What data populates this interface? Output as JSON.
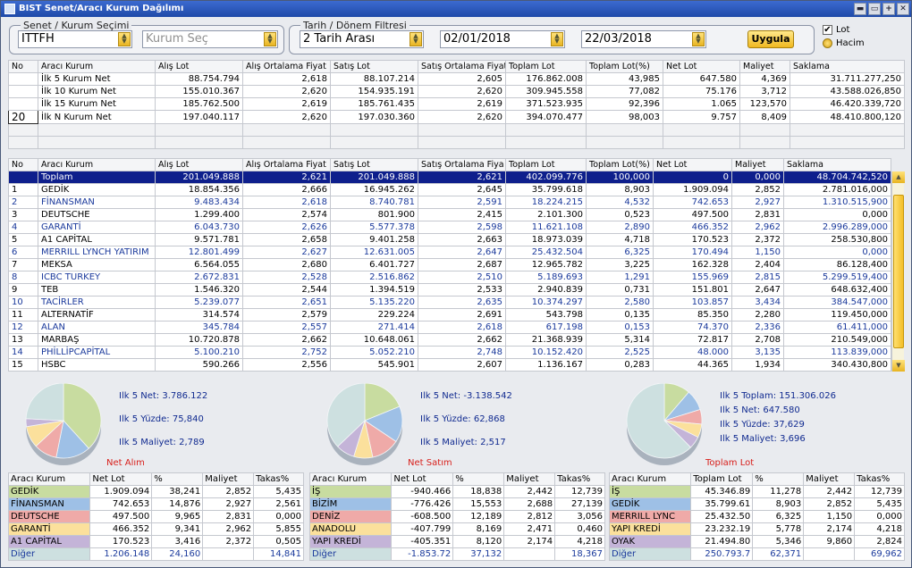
{
  "window": {
    "title": "BIST Senet/Aracı Kurum Dağılımı",
    "controls": [
      "▬",
      "▭",
      "+",
      "✕"
    ]
  },
  "filters": {
    "senet_group": "Senet / Kurum Seçimi",
    "symbol": "ITTFH",
    "kurum_placeholder": "Kurum Seç",
    "date_group": "Tarih / Dönem Filtresi",
    "period": "2 Tarih Arası",
    "start_date": "02/01/2018",
    "end_date": "22/03/2018",
    "apply_label": "Uygula",
    "opt_lot": "Lot",
    "opt_hacim": "Hacim",
    "lot_checked": "✔"
  },
  "top_table": {
    "headers": [
      "No",
      "Aracı Kurum",
      "Alış Lot",
      "Alış Ortalama Fiyat",
      "Satış Lot",
      "Satış Ortalama Fiyat",
      "Toplam Lot",
      "Toplam Lot(%)",
      "Net Lot",
      "Maliyet",
      "Saklama"
    ],
    "rows": [
      [
        "",
        "İlk 5 Kurum Net",
        "88.754.794",
        "2,618",
        "88.107.214",
        "2,605",
        "176.862.008",
        "43,985",
        "647.580",
        "4,369",
        "31.711.277,250"
      ],
      [
        "",
        "İlk 10 Kurum Net",
        "155.010.367",
        "2,620",
        "154.935.191",
        "2,620",
        "309.945.558",
        "77,082",
        "75.176",
        "3,712",
        "43.588.026,850"
      ],
      [
        "",
        "İlk 15 Kurum Net",
        "185.762.500",
        "2,619",
        "185.761.435",
        "2,619",
        "371.523.935",
        "92,396",
        "1.065",
        "123,570",
        "46.420.339,720"
      ],
      [
        "20",
        "İlk N Kurum Net",
        "197.040.117",
        "2,620",
        "197.030.360",
        "2,620",
        "394.070.477",
        "98,003",
        "9.757",
        "8,409",
        "48.410.800,120"
      ]
    ]
  },
  "main_table": {
    "headers": [
      "No",
      "Aracı Kurum",
      "Alış Lot",
      "Alış Ortalama Fiyat",
      "Satış Lot",
      "Satış Ortalama Fiya",
      "Toplam Lot",
      "Toplam Lot(%)",
      "Net Lot",
      "Maliyet",
      "Saklama"
    ],
    "rows": [
      [
        "",
        "Toplam",
        "201.049.888",
        "2,621",
        "201.049.888",
        "2,621",
        "402.099.776",
        "100,000",
        "0",
        "0,000",
        "48.704.742,520"
      ],
      [
        "1",
        "GEDİK",
        "18.854.356",
        "2,666",
        "16.945.262",
        "2,645",
        "35.799.618",
        "8,903",
        "1.909.094",
        "2,852",
        "2.781.016,000"
      ],
      [
        "2",
        "FİNANSMAN",
        "9.483.434",
        "2,618",
        "8.740.781",
        "2,591",
        "18.224.215",
        "4,532",
        "742.653",
        "2,927",
        "1.310.515,900"
      ],
      [
        "3",
        "DEUTSCHE",
        "1.299.400",
        "2,574",
        "801.900",
        "2,415",
        "2.101.300",
        "0,523",
        "497.500",
        "2,831",
        "0,000"
      ],
      [
        "4",
        "GARANTİ",
        "6.043.730",
        "2,626",
        "5.577.378",
        "2,598",
        "11.621.108",
        "2,890",
        "466.352",
        "2,962",
        "2.996.289,000"
      ],
      [
        "5",
        "A1 CAPİTAL",
        "9.571.781",
        "2,658",
        "9.401.258",
        "2,663",
        "18.973.039",
        "4,718",
        "170.523",
        "2,372",
        "258.530,800"
      ],
      [
        "6",
        "MERRILL LYNCH YATIRIM",
        "12.801.499",
        "2,627",
        "12.631.005",
        "2,647",
        "25.432.504",
        "6,325",
        "170.494",
        "1,150",
        "0,000"
      ],
      [
        "7",
        "MEKSA",
        "6.564.055",
        "2,680",
        "6.401.727",
        "2,687",
        "12.965.782",
        "3,225",
        "162.328",
        "2,404",
        "86.128,400"
      ],
      [
        "8",
        "ICBC TURKEY",
        "2.672.831",
        "2,528",
        "2.516.862",
        "2,510",
        "5.189.693",
        "1,291",
        "155.969",
        "2,815",
        "5.299.519,400"
      ],
      [
        "9",
        "TEB",
        "1.546.320",
        "2,544",
        "1.394.519",
        "2,533",
        "2.940.839",
        "0,731",
        "151.801",
        "2,647",
        "648.632,400"
      ],
      [
        "10",
        "TACİRLER",
        "5.239.077",
        "2,651",
        "5.135.220",
        "2,635",
        "10.374.297",
        "2,580",
        "103.857",
        "3,434",
        "384.547,000"
      ],
      [
        "11",
        "ALTERNATİF",
        "314.574",
        "2,579",
        "229.224",
        "2,691",
        "543.798",
        "0,135",
        "85.350",
        "2,280",
        "119.450,000"
      ],
      [
        "12",
        "ALAN",
        "345.784",
        "2,557",
        "271.414",
        "2,618",
        "617.198",
        "0,153",
        "74.370",
        "2,336",
        "61.411,000"
      ],
      [
        "13",
        "MARBAŞ",
        "10.720.878",
        "2,662",
        "10.648.061",
        "2,662",
        "21.368.939",
        "5,314",
        "72.817",
        "2,708",
        "210.549,000"
      ],
      [
        "14",
        "PHİLLİPCAPİTAL",
        "5.100.210",
        "2,752",
        "5.052.210",
        "2,748",
        "10.152.420",
        "2,525",
        "48.000",
        "3,135",
        "113.839,000"
      ],
      [
        "15",
        "HSBC",
        "590.266",
        "2,556",
        "545.901",
        "2,607",
        "1.136.167",
        "0,283",
        "44.365",
        "1,934",
        "340.430,800"
      ]
    ]
  },
  "charts": [
    {
      "title": "Net Alım",
      "stats": [
        "Ilk 5 Net: 3.786.122",
        "Ilk 5 Yüzde: 75,840",
        "Ilk 5 Maliyet: 2,789"
      ],
      "chart_data": {
        "type": "pie",
        "categories": [
          "GEDİK",
          "FİNANSMAN",
          "DEUTSCHE",
          "GARANTİ",
          "A1 CAPİTAL",
          "Diğer"
        ],
        "values": [
          38.241,
          14.876,
          9.965,
          9.341,
          3.416,
          24.16
        ],
        "colors": [
          "#c8dca0",
          "#9ec0e6",
          "#efaaa8",
          "#fbe09c",
          "#c4b4d8",
          "#cde0e0"
        ]
      },
      "table": {
        "headers": [
          "Aracı Kurum",
          "Net Lot",
          "%",
          "Maliyet",
          "Takas%"
        ],
        "rows": [
          [
            "GEDİK",
            "1.909.094",
            "38,241",
            "2,852",
            "5,435"
          ],
          [
            "FİNANSMAN",
            "742.653",
            "14,876",
            "2,927",
            "2,561"
          ],
          [
            "DEUTSCHE",
            "497.500",
            "9,965",
            "2,831",
            "0,000"
          ],
          [
            "GARANTİ",
            "466.352",
            "9,341",
            "2,962",
            "5,855"
          ],
          [
            "A1 CAPİTAL",
            "170.523",
            "3,416",
            "2,372",
            "0,505"
          ],
          [
            "Diğer",
            "1.206.148",
            "24,160",
            "",
            "14,841"
          ]
        ]
      }
    },
    {
      "title": "Net Satım",
      "stats": [
        "Ilk 5 Net: -3.138.542",
        "Ilk 5 Yüzde: 62,868",
        "Ilk 5 Maliyet: 2,517"
      ],
      "chart_data": {
        "type": "pie",
        "categories": [
          "İŞ",
          "BİZİM",
          "DENİZ",
          "ANADOLU",
          "YAPI KREDİ",
          "Diğer"
        ],
        "values": [
          18.838,
          15.553,
          12.189,
          8.169,
          8.12,
          37.132
        ],
        "colors": [
          "#c8dca0",
          "#9ec0e6",
          "#efaaa8",
          "#fbe09c",
          "#c4b4d8",
          "#cde0e0"
        ]
      },
      "table": {
        "headers": [
          "Aracı Kurum",
          "Net Lot",
          "%",
          "Maliyet",
          "Takas%"
        ],
        "rows": [
          [
            "İŞ",
            "-940.466",
            "18,838",
            "2,442",
            "12,739"
          ],
          [
            "BİZİM",
            "-776.426",
            "15,553",
            "2,688",
            "27,139"
          ],
          [
            "DENİZ",
            "-608.500",
            "12,189",
            "2,812",
            "3,056"
          ],
          [
            "ANADOLU",
            "-407.799",
            "8,169",
            "2,471",
            "0,460"
          ],
          [
            "YAPI KREDİ",
            "-405.351",
            "8,120",
            "2,174",
            "4,218"
          ],
          [
            "Diğer",
            "-1.853.72",
            "37,132",
            "",
            "18,367"
          ]
        ]
      }
    },
    {
      "title": "Toplam Lot",
      "stats": [
        "Ilk 5 Toplam: 151.306.026",
        "Ilk 5 Net: 647.580",
        "Ilk 5 Yüzde: 37,629",
        "Ilk 5 Maliyet: 3,696"
      ],
      "chart_data": {
        "type": "pie",
        "categories": [
          "İŞ",
          "GEDİK",
          "MERRILL LYNC",
          "YAPI KREDİ",
          "OYAK",
          "Diğer"
        ],
        "values": [
          11.278,
          8.903,
          6.325,
          5.778,
          5.346,
          62.371
        ],
        "colors": [
          "#c8dca0",
          "#9ec0e6",
          "#efaaa8",
          "#fbe09c",
          "#c4b4d8",
          "#cde0e0"
        ]
      },
      "table": {
        "headers": [
          "Aracı Kurum",
          "Toplam Lot",
          "%",
          "Maliyet",
          "Takas%"
        ],
        "rows": [
          [
            "İŞ",
            "45.346.89",
            "11,278",
            "2,442",
            "12,739"
          ],
          [
            "GEDİK",
            "35.799.61",
            "8,903",
            "2,852",
            "5,435"
          ],
          [
            "MERRILL LYNC",
            "25.432.50",
            "6,325",
            "1,150",
            "0,000"
          ],
          [
            "YAPI KREDİ",
            "23.232.19",
            "5,778",
            "2,174",
            "4,218"
          ],
          [
            "OYAK",
            "21.494.80",
            "5,346",
            "9,860",
            "2,824"
          ],
          [
            "Diğer",
            "250.793.7",
            "62,371",
            "",
            "69,962"
          ]
        ]
      }
    }
  ]
}
